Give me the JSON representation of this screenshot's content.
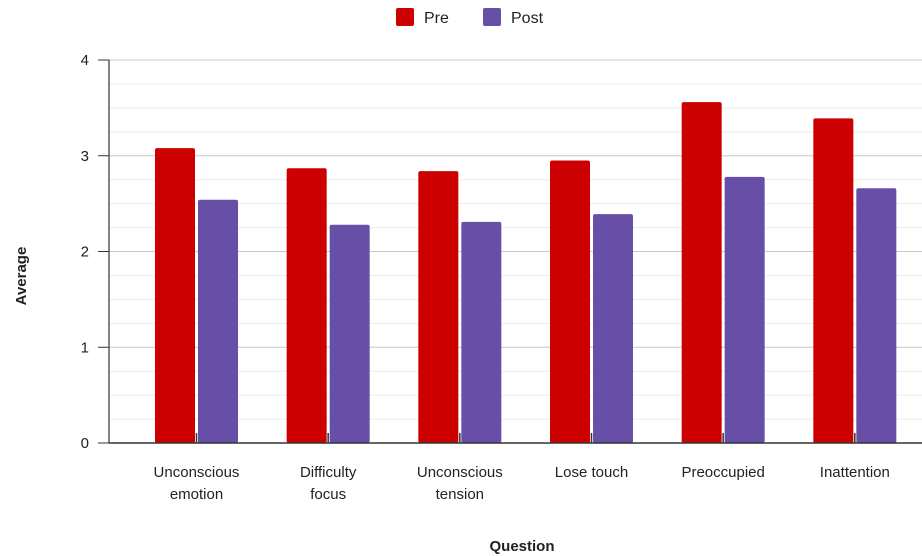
{
  "chart_data": {
    "type": "bar",
    "categories": [
      [
        "Unconscious",
        "emotion"
      ],
      [
        "Difficulty",
        "focus"
      ],
      [
        "Unconscious",
        "tension"
      ],
      [
        "Lose touch"
      ],
      [
        "Preoccupied"
      ],
      [
        "Inattention"
      ]
    ],
    "series": [
      {
        "name": "Pre",
        "color": "#cc0000",
        "values": [
          3.08,
          2.87,
          2.84,
          2.95,
          3.56,
          3.39
        ]
      },
      {
        "name": "Post",
        "color": "#674ea7",
        "values": [
          2.54,
          2.28,
          2.31,
          2.39,
          2.78,
          2.66
        ]
      }
    ],
    "xlabel": "Question",
    "ylabel": "Average",
    "ylim": [
      0,
      4
    ],
    "yticks": [
      "0",
      "1",
      "2",
      "3",
      "4"
    ],
    "grid": true,
    "legend_position": "top"
  }
}
